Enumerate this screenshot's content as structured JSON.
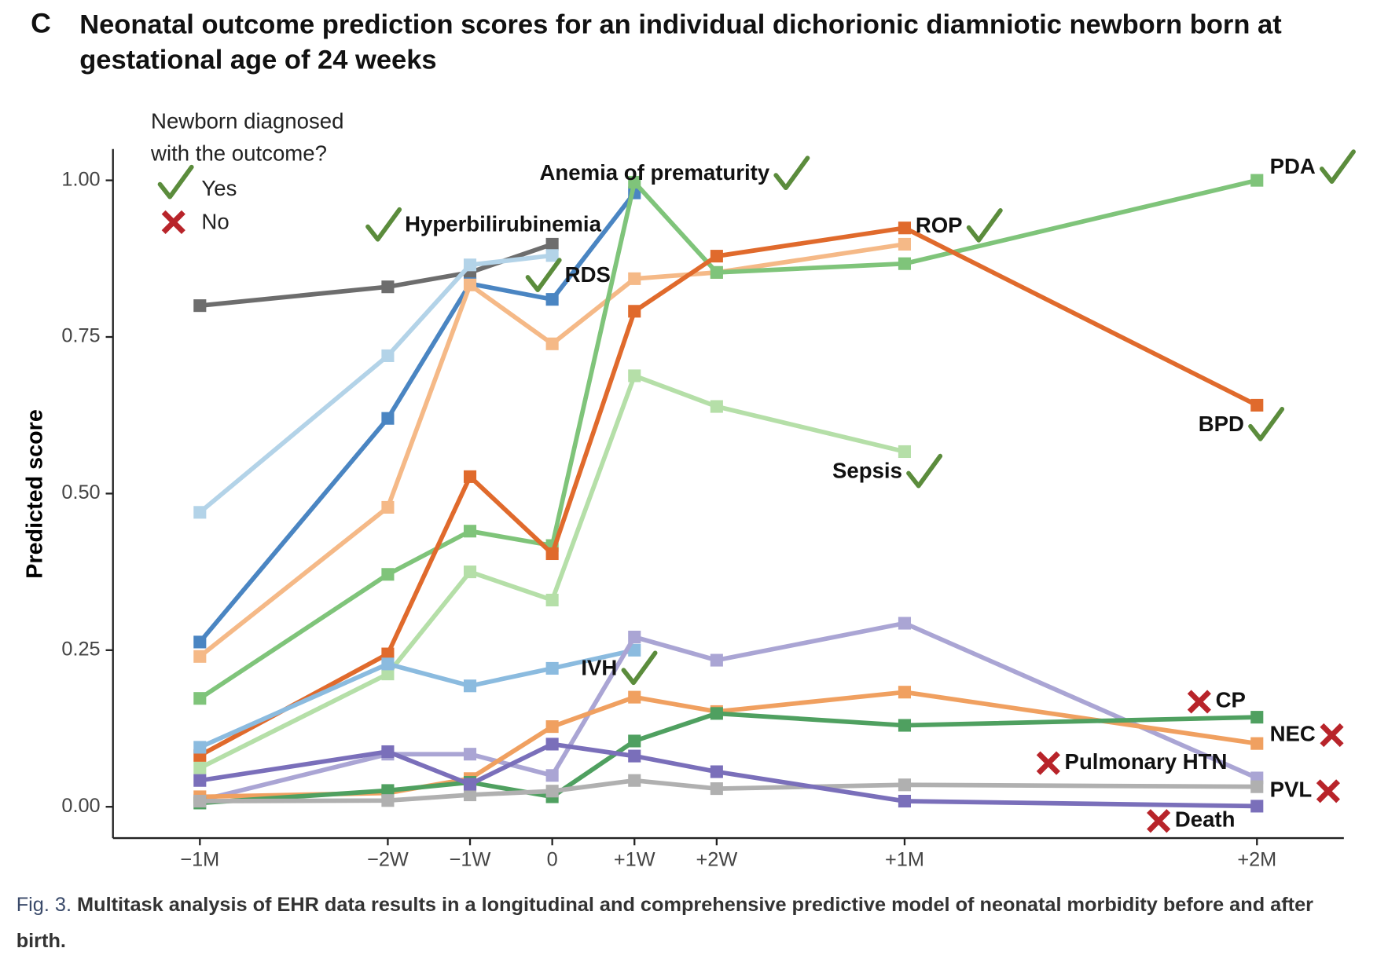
{
  "chart_data": {
    "type": "line",
    "panel": "C",
    "title": "Neonatal outcome prediction scores for an individual dichorionic diamniotic newborn born at gestational age of 24 weeks",
    "y_label": "Predicted score",
    "legend": {
      "title": "Newborn diagnosed with the outcome?",
      "yes": "Yes",
      "no": "No"
    },
    "x": [
      -30,
      -14,
      -7,
      0,
      7,
      14,
      30,
      60
    ],
    "xlim": [
      -37.4,
      67.4
    ],
    "xticks": [
      {
        "value": -30,
        "label": "−1M"
      },
      {
        "value": -14,
        "label": "−2W"
      },
      {
        "value": -7,
        "label": "−1W"
      },
      0,
      {
        "value": 7,
        "label": "+1W"
      },
      {
        "value": 14,
        "label": "+2W"
      },
      {
        "value": 30,
        "label": "+1M"
      },
      {
        "value": 60,
        "label": "+2M"
      }
    ],
    "ylim": [
      -0.05,
      1.05
    ],
    "yticks": [
      {
        "value": 0,
        "label": "0.00"
      },
      {
        "value": 0.25,
        "label": "0.25"
      },
      {
        "value": 0.5,
        "label": "0.50"
      },
      {
        "value": 0.75,
        "label": "0.75"
      },
      {
        "value": 1,
        "label": "1.00"
      }
    ],
    "series": [
      {
        "color": "#6d6d6d",
        "values": [
          0.8,
          0.83,
          0.853,
          0.898,
          null,
          null,
          null,
          null
        ]
      },
      {
        "color": "#b3d3e8",
        "values": [
          0.47,
          0.72,
          0.865,
          0.88,
          null,
          null,
          null,
          null
        ]
      },
      {
        "color": "#4a85c2",
        "values": [
          0.263,
          0.62,
          0.835,
          0.81,
          0.98,
          null,
          null,
          null
        ]
      },
      {
        "color": "#f5b987",
        "values": [
          0.24,
          0.478,
          0.833,
          0.739,
          0.843,
          0.853,
          0.898,
          null
        ]
      },
      {
        "color": "#b5dfa8",
        "values": [
          0.062,
          0.212,
          0.375,
          0.33,
          0.688,
          0.639,
          0.567,
          null
        ]
      },
      {
        "color": "#7fc47a",
        "values": [
          0.173,
          0.371,
          0.44,
          0.417,
          0.997,
          0.853,
          0.867,
          1.0
        ]
      },
      {
        "color": "#e06a2c",
        "values": [
          0.082,
          0.244,
          0.527,
          0.404,
          0.791,
          0.879,
          0.924,
          0.641
        ]
      },
      {
        "color": "#8bbbdf",
        "values": [
          0.095,
          0.228,
          0.193,
          0.221,
          0.25,
          null,
          null,
          null
        ]
      },
      {
        "color": "#aaa5d4",
        "values": [
          0.01,
          0.084,
          0.084,
          0.05,
          0.271,
          0.234,
          0.293,
          0.046
        ]
      },
      {
        "color": "#f0a060",
        "values": [
          0.016,
          0.022,
          0.045,
          0.128,
          0.175,
          0.152,
          0.183,
          0.101
        ]
      },
      {
        "color": "#4fa060",
        "values": [
          0.006,
          0.026,
          0.039,
          0.016,
          0.105,
          0.149,
          0.13,
          0.143
        ]
      },
      {
        "color": "#b0b0b0",
        "values": [
          0.009,
          0.01,
          0.019,
          0.025,
          0.042,
          0.029,
          0.035,
          0.032
        ]
      },
      {
        "color": "#7a6fba",
        "values": [
          0.042,
          0.088,
          0.036,
          0.1,
          0.081,
          0.056,
          0.009,
          0.001
        ]
      }
    ],
    "annotations": [
      {
        "text": "Anemia of prematurity",
        "diagnosed": true
      },
      {
        "text": "Hyperbilirubinemia",
        "diagnosed": true
      },
      {
        "text": "RDS",
        "diagnosed": true
      },
      {
        "text": "ROP",
        "diagnosed": true
      },
      {
        "text": "PDA",
        "diagnosed": true
      },
      {
        "text": "BPD",
        "diagnosed": true
      },
      {
        "text": "Sepsis",
        "diagnosed": true
      },
      {
        "text": "IVH",
        "diagnosed": true
      },
      {
        "text": "CP",
        "diagnosed": false
      },
      {
        "text": "NEC",
        "diagnosed": false
      },
      {
        "text": "Pulmonary HTN",
        "diagnosed": false
      },
      {
        "text": "PVL",
        "diagnosed": false
      },
      {
        "text": "Death",
        "diagnosed": false
      }
    ],
    "caption": {
      "label": "Fig. 3.",
      "text": "Multitask analysis of EHR data results in a longitudinal and comprehensive predictive model of neonatal morbidity before and after birth."
    }
  }
}
